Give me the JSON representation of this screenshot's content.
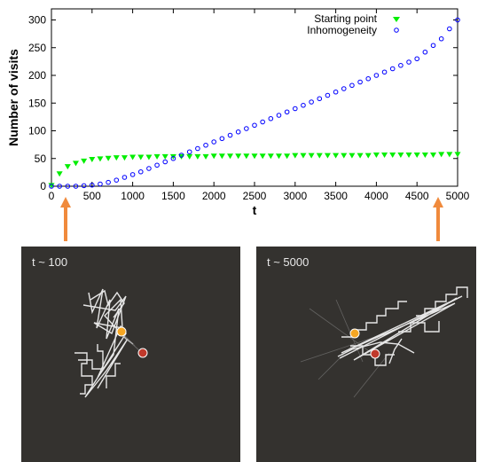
{
  "chart_data": {
    "type": "scatter",
    "xlabel": "t",
    "ylabel": "Number of visits",
    "xlim": [
      0,
      5000
    ],
    "ylim": [
      0,
      320
    ],
    "xticks": [
      0,
      500,
      1000,
      1500,
      2000,
      2500,
      3000,
      3500,
      4000,
      4500,
      5000
    ],
    "yticks": [
      0,
      50,
      100,
      150,
      200,
      250,
      300
    ],
    "legend_position": "top-right",
    "series": [
      {
        "name": "Starting point",
        "marker": "down-triangle",
        "color": "#00ee00",
        "x": [
          0,
          100,
          200,
          300,
          400,
          500,
          600,
          700,
          800,
          900,
          1000,
          1100,
          1200,
          1300,
          1400,
          1500,
          1600,
          1700,
          1800,
          1900,
          2000,
          2100,
          2200,
          2300,
          2400,
          2500,
          2600,
          2700,
          2800,
          2900,
          3000,
          3100,
          3200,
          3300,
          3400,
          3500,
          3600,
          3700,
          3800,
          3900,
          4000,
          4100,
          4200,
          4300,
          4400,
          4500,
          4600,
          4700,
          4800,
          4900,
          5000
        ],
        "y": [
          1,
          22,
          35,
          41,
          45,
          48,
          49,
          50,
          51,
          51,
          52,
          52,
          52,
          53,
          53,
          53,
          53,
          53,
          53,
          53,
          54,
          54,
          54,
          54,
          54,
          54,
          54,
          54,
          54,
          54,
          55,
          55,
          55,
          55,
          55,
          55,
          55,
          55,
          55,
          55,
          56,
          56,
          56,
          56,
          56,
          56,
          56,
          56,
          57,
          57,
          57
        ]
      },
      {
        "name": "Inhomogeneity",
        "marker": "open-circle",
        "color": "#0000ff",
        "x": [
          0,
          100,
          200,
          300,
          400,
          500,
          600,
          700,
          800,
          900,
          1000,
          1100,
          1200,
          1300,
          1400,
          1500,
          1600,
          1700,
          1800,
          1900,
          2000,
          2100,
          2200,
          2300,
          2400,
          2500,
          2600,
          2700,
          2800,
          2900,
          3000,
          3100,
          3200,
          3300,
          3400,
          3500,
          3600,
          3700,
          3800,
          3900,
          4000,
          4100,
          4200,
          4300,
          4400,
          4500,
          4600,
          4700,
          4800,
          4900,
          5000
        ],
        "y": [
          0,
          0,
          0,
          0,
          1,
          2,
          4,
          7,
          11,
          16,
          21,
          26,
          32,
          38,
          44,
          50,
          56,
          62,
          68,
          74,
          80,
          86,
          92,
          98,
          104,
          110,
          116,
          122,
          128,
          134,
          140,
          146,
          152,
          158,
          164,
          170,
          176,
          182,
          188,
          194,
          200,
          206,
          212,
          218,
          224,
          230,
          242,
          254,
          266,
          284,
          300
        ]
      }
    ]
  },
  "panels": [
    {
      "label": "t ~ 100",
      "background": "#34322f",
      "orange_dot": [
        0.43,
        0.38
      ],
      "red_dot": [
        0.5,
        0.45
      ]
    },
    {
      "label": "t ~ 5000",
      "background": "#34322f",
      "orange_dot": [
        0.43,
        0.4
      ],
      "red_dot": [
        0.5,
        0.46
      ]
    }
  ],
  "colors": {
    "arrow": "#f08a3c",
    "trail": "#e6e6e6",
    "orange_dot": "#f5a623",
    "red_dot": "#c0392b"
  }
}
